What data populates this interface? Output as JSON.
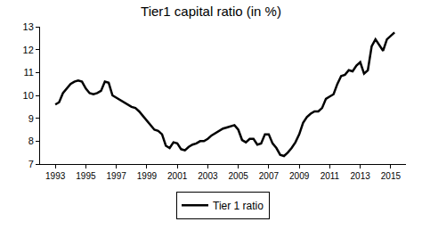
{
  "chart_data": {
    "type": "line",
    "title": "Tier1 capital ratio (in %)",
    "x": [
      1993,
      1993.25,
      1993.5,
      1993.75,
      1994,
      1994.25,
      1994.5,
      1994.75,
      1995,
      1995.25,
      1995.5,
      1995.75,
      1996,
      1996.25,
      1996.5,
      1996.75,
      1997,
      1997.25,
      1997.5,
      1997.75,
      1998,
      1998.25,
      1998.5,
      1998.75,
      1999,
      1999.25,
      1999.5,
      1999.75,
      2000,
      2000.25,
      2000.5,
      2000.75,
      2001,
      2001.25,
      2001.5,
      2001.75,
      2002,
      2002.25,
      2002.5,
      2002.75,
      2003,
      2003.25,
      2003.5,
      2003.75,
      2004,
      2004.25,
      2004.5,
      2004.75,
      2005,
      2005.25,
      2005.5,
      2005.75,
      2006,
      2006.25,
      2006.5,
      2006.75,
      2007,
      2007.25,
      2007.5,
      2007.75,
      2008,
      2008.25,
      2008.5,
      2008.75,
      2009,
      2009.25,
      2009.5,
      2009.75,
      2010,
      2010.25,
      2010.5,
      2010.75,
      2011,
      2011.25,
      2011.5,
      2011.75,
      2012,
      2012.25,
      2012.5,
      2012.75,
      2013,
      2013.25,
      2013.5,
      2013.75,
      2014,
      2014.25,
      2014.5,
      2014.75,
      2015,
      2015.25
    ],
    "series": [
      {
        "name": "Tier 1 ratio",
        "color": "#000000",
        "values": [
          9.6,
          9.7,
          10.1,
          10.3,
          10.5,
          10.6,
          10.65,
          10.6,
          10.3,
          10.1,
          10.05,
          10.1,
          10.2,
          10.6,
          10.55,
          10.0,
          9.9,
          9.8,
          9.7,
          9.6,
          9.5,
          9.45,
          9.3,
          9.1,
          8.9,
          8.7,
          8.5,
          8.45,
          8.3,
          7.8,
          7.7,
          7.95,
          7.9,
          7.65,
          7.6,
          7.75,
          7.85,
          7.9,
          8.0,
          8.0,
          8.1,
          8.25,
          8.35,
          8.45,
          8.55,
          8.6,
          8.65,
          8.7,
          8.5,
          8.05,
          7.95,
          8.1,
          8.1,
          7.85,
          7.9,
          8.3,
          8.3,
          7.9,
          7.7,
          7.4,
          7.35,
          7.5,
          7.7,
          7.95,
          8.3,
          8.8,
          9.05,
          9.2,
          9.3,
          9.3,
          9.45,
          9.85,
          9.95,
          10.05,
          10.5,
          10.85,
          10.9,
          11.1,
          11.05,
          11.3,
          11.45,
          10.95,
          11.1,
          12.15,
          12.45,
          12.2,
          11.95,
          12.45,
          12.6,
          12.75
        ]
      }
    ],
    "xlim": [
      1992,
      2016
    ],
    "xticks": [
      1993,
      1995,
      1997,
      1999,
      2001,
      2003,
      2005,
      2007,
      2009,
      2011,
      2013,
      2015
    ],
    "ylim": [
      7,
      13
    ],
    "yticks": [
      7,
      8,
      9,
      10,
      11,
      12,
      13
    ],
    "grid": false,
    "legend": "bottom"
  }
}
